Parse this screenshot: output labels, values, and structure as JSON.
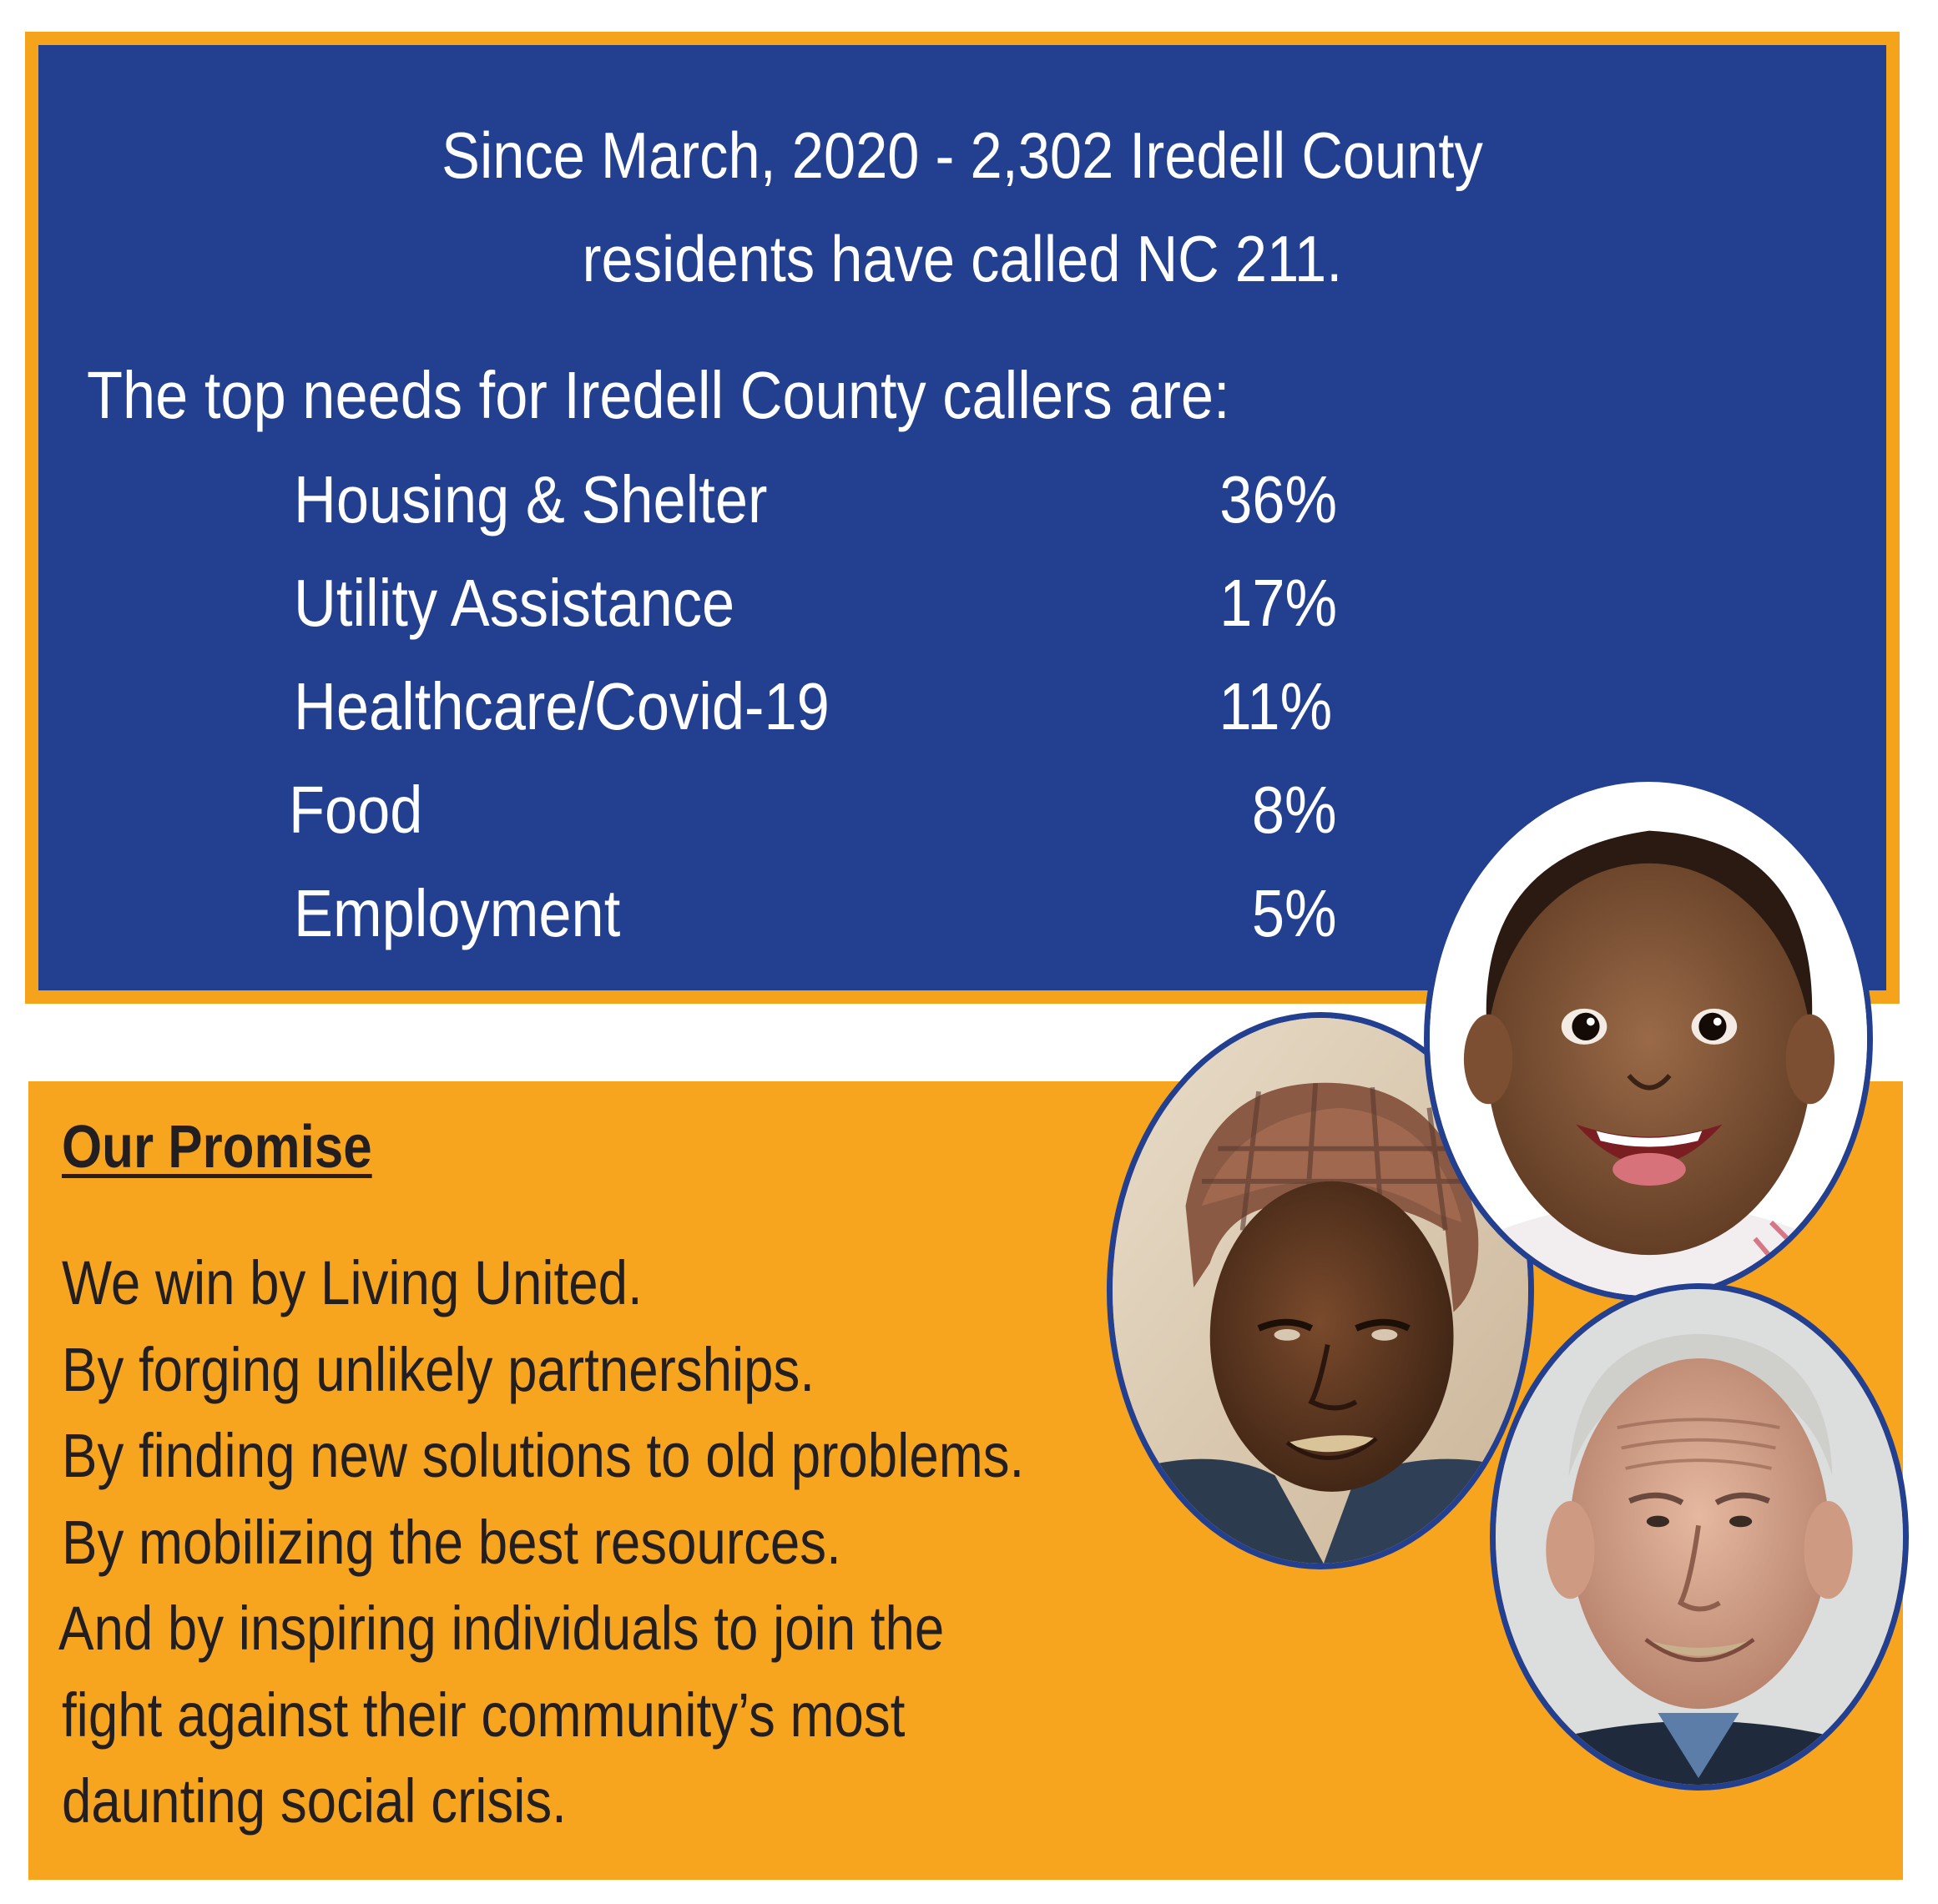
{
  "stats": {
    "headline_line1": "Since March, 2020 - 2,302 Iredell County",
    "headline_line2": "residents have called NC 211.",
    "intro": "The top needs for Iredell County callers are:",
    "needs": [
      {
        "label": "Housing & Shelter",
        "percent": "36%"
      },
      {
        "label": "Utility Assistance",
        "percent": "17%"
      },
      {
        "label": "Healthcare/Covid-19",
        "percent": "11%"
      },
      {
        "label": "Food",
        "percent": "8%"
      },
      {
        "label": "Employment",
        "percent": "5%"
      }
    ]
  },
  "promise": {
    "title": "Our Promise",
    "lines": [
      "We win by Living United.",
      "By forging unlikely partnerships.",
      "By finding new solutions to old problems.",
      "By mobilizing the best resources.",
      "And by inspiring individuals to join the",
      "fight against their community’s most",
      "daunting social crisis."
    ]
  },
  "colors": {
    "navy": "#233f8f",
    "orange": "#f7a51f",
    "text_dark": "#231f20",
    "text_light": "#ffffff"
  }
}
